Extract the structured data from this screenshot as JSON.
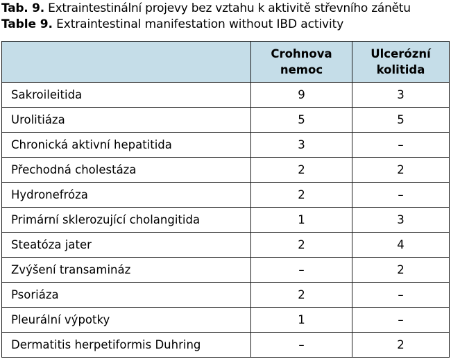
{
  "caption": {
    "cz_prefix": "Tab. 9.",
    "cz_text": " Extraintestinální projevy bez vztahu k aktivitě střevního zánětu",
    "en_prefix": "Table 9.",
    "en_text": " Extraintestinal manifestation without IBD activity"
  },
  "table": {
    "header": {
      "col1": "",
      "col2_line1": "Crohnova",
      "col2_line2": "nemoc",
      "col3_line1": "Ulcerózní",
      "col3_line2": "kolitida"
    },
    "rows": [
      {
        "name": "Sakroileitida",
        "crohn": "9",
        "uc": "3"
      },
      {
        "name": "Urolitiáza",
        "crohn": "5",
        "uc": "5"
      },
      {
        "name": "Chronická aktivní hepatitida",
        "crohn": "3",
        "uc": "–"
      },
      {
        "name": "Přechodná cholestáza",
        "crohn": "2",
        "uc": "2"
      },
      {
        "name": "Hydronefróza",
        "crohn": "2",
        "uc": "–"
      },
      {
        "name": "Primární sklerozující cholangitida",
        "crohn": "1",
        "uc": "3"
      },
      {
        "name": "Steatóza jater",
        "crohn": "2",
        "uc": "4"
      },
      {
        "name": "Zvýšení transamináz",
        "crohn": "–",
        "uc": "2"
      },
      {
        "name": "Psoriáza",
        "crohn": "2",
        "uc": "–"
      },
      {
        "name": "Pleurální výpotky",
        "crohn": "1",
        "uc": "–"
      },
      {
        "name": "Dermatitis herpetiformis Duhring",
        "crohn": "–",
        "uc": "2"
      }
    ]
  },
  "colors": {
    "header_bg": "#c5dde8",
    "border": "#1a1a1a"
  }
}
